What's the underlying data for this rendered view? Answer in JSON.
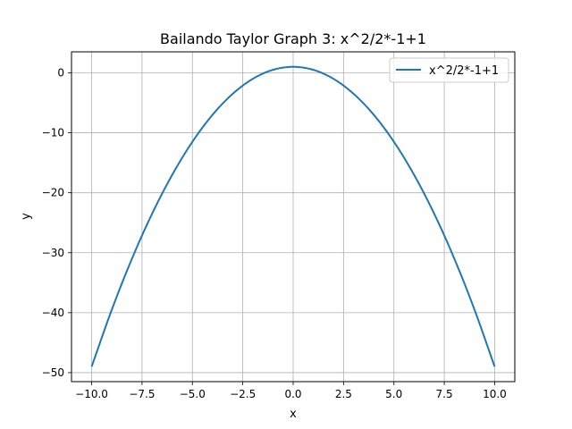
{
  "chart_data": {
    "type": "line",
    "title": "Bailando Taylor Graph 3: x^2/2*-1+1",
    "xlabel": "x",
    "ylabel": "y",
    "xlim": [
      -11,
      11
    ],
    "ylim": [
      -51.5,
      3.5
    ],
    "xticks": [
      -10,
      -7.5,
      -5,
      -2.5,
      0,
      2.5,
      5,
      7.5,
      10
    ],
    "xtick_labels": [
      "−10.0",
      "−7.5",
      "−5.0",
      "−2.5",
      "0.0",
      "2.5",
      "5.0",
      "7.5",
      "10.0"
    ],
    "yticks": [
      0,
      -10,
      -20,
      -30,
      -40,
      -50
    ],
    "ytick_labels": [
      "0",
      "−10",
      "−20",
      "−30",
      "−40",
      "−50"
    ],
    "grid": true,
    "legend_position": "top-right",
    "series": [
      {
        "name": "x^2/2*-1+1",
        "color": "#1f77b4",
        "x": [
          -10,
          -9,
          -8,
          -7,
          -6,
          -5,
          -4,
          -3,
          -2,
          -1,
          0,
          1,
          2,
          3,
          4,
          5,
          6,
          7,
          8,
          9,
          10
        ],
        "y": [
          -49,
          -39.5,
          -31,
          -23.5,
          -17,
          -11.5,
          -7,
          -3.5,
          -1,
          0.5,
          1,
          0.5,
          -1,
          -3.5,
          -7,
          -11.5,
          -17,
          -23.5,
          -31,
          -39.5,
          -49
        ]
      }
    ]
  }
}
